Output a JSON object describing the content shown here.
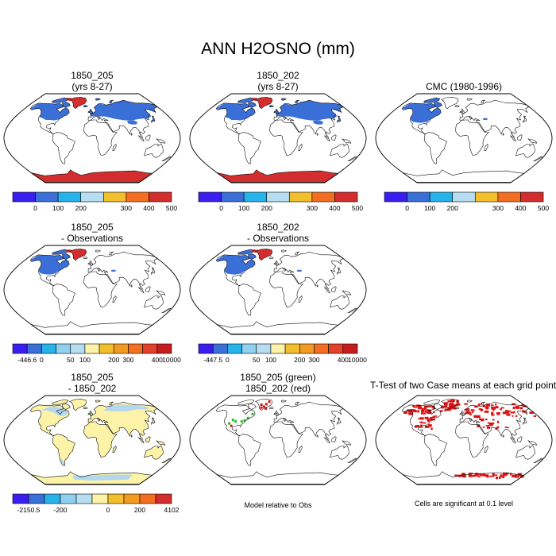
{
  "title": "ANN H2OSNO (mm)",
  "colors": {
    "land": "#ffffff",
    "coast": "#111111",
    "snow_model": "#3a6fd8",
    "snow_high": "#d32d2d",
    "snow_obs": "#3a6fd8",
    "diff_light": "#fdf3a8",
    "diff_blue": "#b3d7ee",
    "green": "#22bb22",
    "red": "#dd1111"
  },
  "scale_main": {
    "colors": [
      "#3a1ef0",
      "#3a6fd8",
      "#26b3ea",
      "#b7ddf0",
      "#f2c02c",
      "#f36e20",
      "#d32d2d"
    ],
    "labels": [
      "0",
      "100",
      "200",
      "300",
      "400",
      "500"
    ]
  },
  "scale_obs": {
    "colors": [
      "#3a1ef0",
      "#3a6fd8",
      "#26b3ea",
      "#8fd0ee",
      "#b7ddf0",
      "#fdf3a8",
      "#f2c02c",
      "#f39a20",
      "#f36e20",
      "#e3402c",
      "#c51c1c"
    ],
    "labels_205": [
      "-446.6",
      "0",
      "50",
      "100",
      "200",
      "300",
      "400",
      "10000"
    ],
    "labels_202": [
      "-447.5",
      "0",
      "50",
      "100",
      "200",
      "300",
      "400",
      "10000"
    ]
  },
  "scale_diff": {
    "colors": [
      "#3a1ef0",
      "#3a6fd8",
      "#26b3ea",
      "#8fd0ee",
      "#b7ddf0",
      "#fdf3a8",
      "#f2c02c",
      "#f39a20",
      "#f36e20",
      "#d32d2d"
    ],
    "labels": [
      "-2150.5",
      "-200",
      "0",
      "200",
      "4102"
    ]
  },
  "chart_data": [
    {
      "type": "heatmap",
      "title": "1850_205",
      "subtitle": "(yrs 8-27)",
      "colorbar_labels": [
        "0",
        "100",
        "200",
        "300",
        "400",
        "500"
      ]
    },
    {
      "type": "heatmap",
      "title": "1850_202",
      "subtitle": "(yrs 8-27)",
      "colorbar_labels": [
        "0",
        "100",
        "200",
        "300",
        "400",
        "500"
      ]
    },
    {
      "type": "heatmap",
      "title": "CMC (1980-1996)",
      "colorbar_labels": [
        "0",
        "100",
        "200",
        "300",
        "400",
        "500"
      ]
    },
    {
      "type": "heatmap",
      "title": "1850_205",
      "subtitle": "- Observations",
      "colorbar_labels": [
        "-446.6",
        "0",
        "50",
        "100",
        "200",
        "300",
        "400",
        "10000"
      ]
    },
    {
      "type": "heatmap",
      "title": "1850_202",
      "subtitle": "- Observations",
      "colorbar_labels": [
        "-447.5",
        "0",
        "50",
        "100",
        "200",
        "300",
        "400",
        "10000"
      ]
    },
    {
      "type": "heatmap",
      "title": "1850_205",
      "subtitle": "- 1850_202",
      "colorbar_labels": [
        "-2150.5",
        "-200",
        "0",
        "200",
        "4102"
      ]
    },
    {
      "type": "heatmap",
      "title": "1850_205 (green)",
      "subtitle": "1850_202 (red)",
      "footnote": "Model relative to Obs"
    },
    {
      "type": "heatmap",
      "title": "T-Test of two Case means at each grid point",
      "footnote": "Cells are significant at 0.1 level"
    }
  ]
}
